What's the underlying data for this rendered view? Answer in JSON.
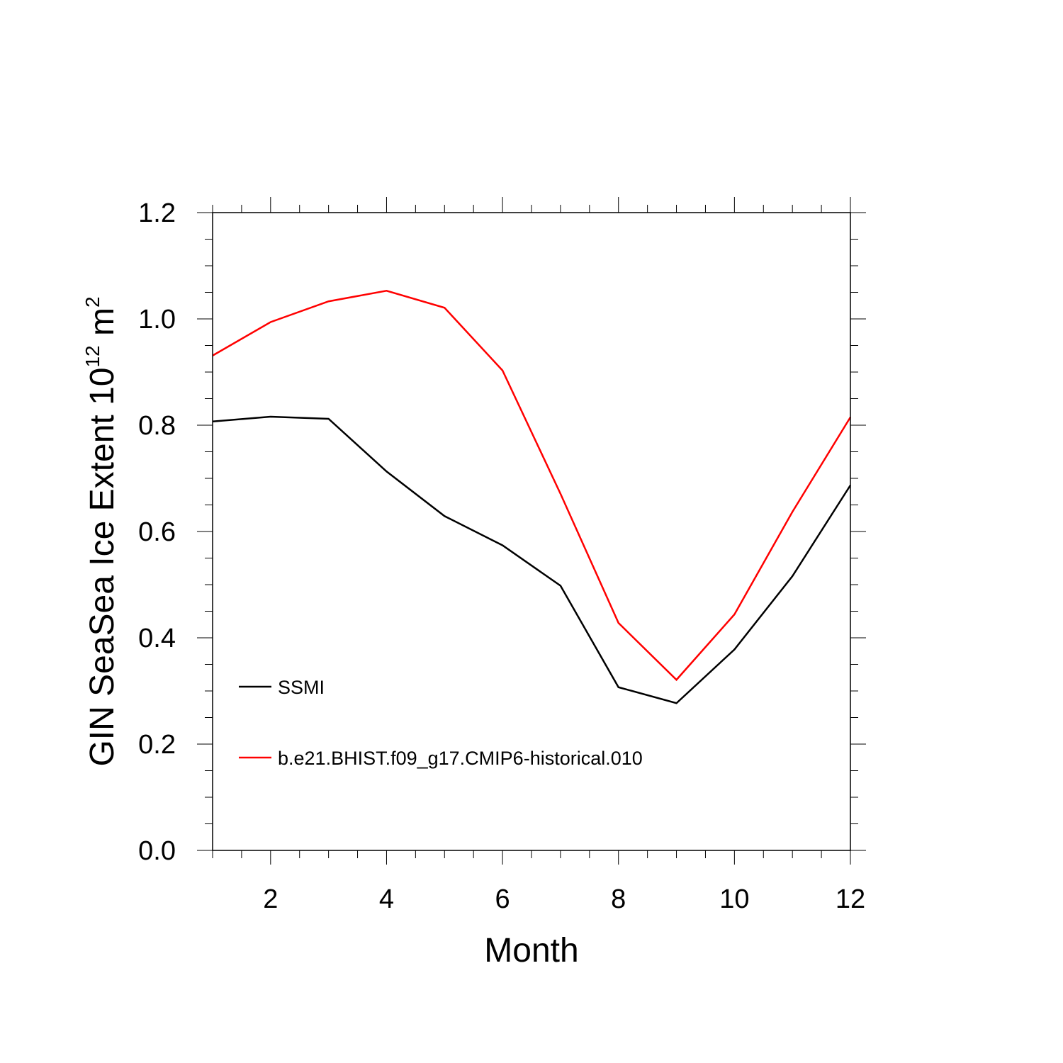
{
  "chart_data": {
    "type": "line",
    "title": "",
    "xlabel": "Month",
    "ylabel_main": "GIN SeaSea Ice Extent 10",
    "ylabel_exp": "12",
    "ylabel_unit": " m",
    "ylabel_unit_exp": "2",
    "xlim": [
      1,
      12
    ],
    "ylim": [
      0.0,
      1.2
    ],
    "x_ticks": [
      2,
      4,
      6,
      8,
      10,
      12
    ],
    "x_tick_labels": [
      "2",
      "4",
      "6",
      "8",
      "10",
      "12"
    ],
    "y_ticks": [
      0.0,
      0.2,
      0.4,
      0.6,
      0.8,
      1.0,
      1.2
    ],
    "y_tick_labels": [
      "0.0",
      "0.2",
      "0.4",
      "0.6",
      "0.8",
      "1.0",
      "1.2"
    ],
    "grid": false,
    "legend_position": "bottom-left",
    "x": [
      1,
      2,
      3,
      4,
      5,
      6,
      7,
      8,
      9,
      10,
      11,
      12
    ],
    "series": [
      {
        "name": "SSMI",
        "color": "#000000",
        "values": [
          0.807,
          0.816,
          0.812,
          0.713,
          0.629,
          0.574,
          0.498,
          0.307,
          0.277,
          0.378,
          0.516,
          0.687
        ]
      },
      {
        "name": "b.e21.BHIST.f09_g17.CMIP6-historical.010",
        "color": "#ff0000",
        "values": [
          0.931,
          0.994,
          1.033,
          1.053,
          1.021,
          0.903,
          0.671,
          0.428,
          0.321,
          0.444,
          0.637,
          0.815
        ]
      }
    ]
  }
}
